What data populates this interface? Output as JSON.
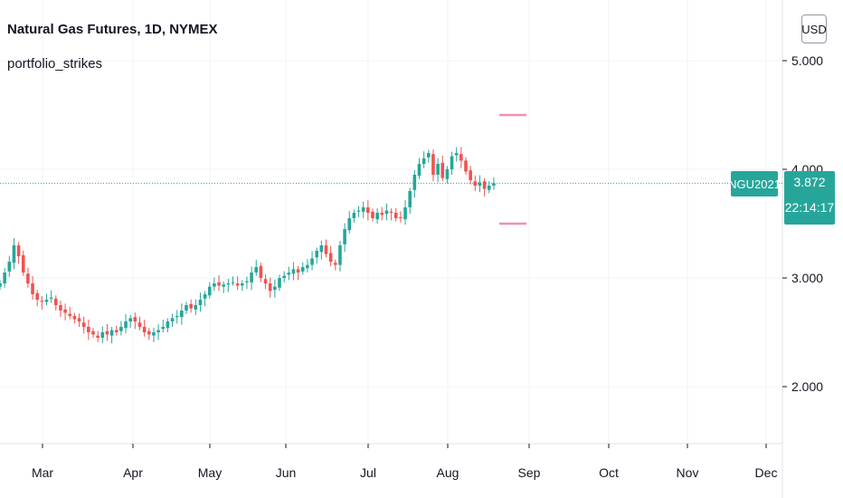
{
  "header": {
    "title": "Natural Gas Futures, 1D, NYMEX",
    "indicator": "portfolio_strikes",
    "currency": "USD"
  },
  "last_price": {
    "symbol": "NGU2021",
    "value": "3.872",
    "countdown": "22:14:17"
  },
  "colors": {
    "up": "#26a69a",
    "down": "#ef5350",
    "strike": "#f48fb1",
    "grid": "#f0f3fa"
  },
  "chart_data": {
    "type": "candlestick",
    "y_ticks": [
      5.0,
      4.0,
      3.0,
      2.0
    ],
    "y_tick_labels": [
      "5.000",
      "4.000",
      "3.000",
      "2.000"
    ],
    "x_tick_labels": [
      "Mar",
      "Apr",
      "May",
      "Jun",
      "Jul",
      "Aug",
      "Sep",
      "Oct",
      "Nov",
      "Dec"
    ],
    "last_price": 3.872,
    "strike_levels": [
      4.5,
      3.5
    ],
    "close_series": [
      2.95,
      3.05,
      3.15,
      3.3,
      3.2,
      3.05,
      2.95,
      2.85,
      2.8,
      2.78,
      2.8,
      2.82,
      2.75,
      2.7,
      2.68,
      2.65,
      2.62,
      2.6,
      2.55,
      2.5,
      2.48,
      2.45,
      2.5,
      2.48,
      2.52,
      2.5,
      2.55,
      2.6,
      2.63,
      2.6,
      2.55,
      2.5,
      2.48,
      2.5,
      2.52,
      2.55,
      2.6,
      2.63,
      2.65,
      2.7,
      2.75,
      2.72,
      2.75,
      2.8,
      2.85,
      2.92,
      2.95,
      2.93,
      2.94,
      2.95,
      2.96,
      2.93,
      2.95,
      2.97,
      3.05,
      3.1,
      3.0,
      2.95,
      2.88,
      2.92,
      3.0,
      3.02,
      3.05,
      3.08,
      3.05,
      3.1,
      3.12,
      3.18,
      3.25,
      3.3,
      3.22,
      3.15,
      3.12,
      3.3,
      3.45,
      3.55,
      3.6,
      3.62,
      3.65,
      3.6,
      3.55,
      3.6,
      3.58,
      3.62,
      3.6,
      3.55,
      3.55,
      3.65,
      3.8,
      3.95,
      4.05,
      4.1,
      4.15,
      3.95,
      4.05,
      3.92,
      4.0,
      4.12,
      4.15,
      4.08,
      3.98,
      3.9,
      3.85,
      3.88,
      3.82,
      3.85,
      3.872
    ]
  }
}
